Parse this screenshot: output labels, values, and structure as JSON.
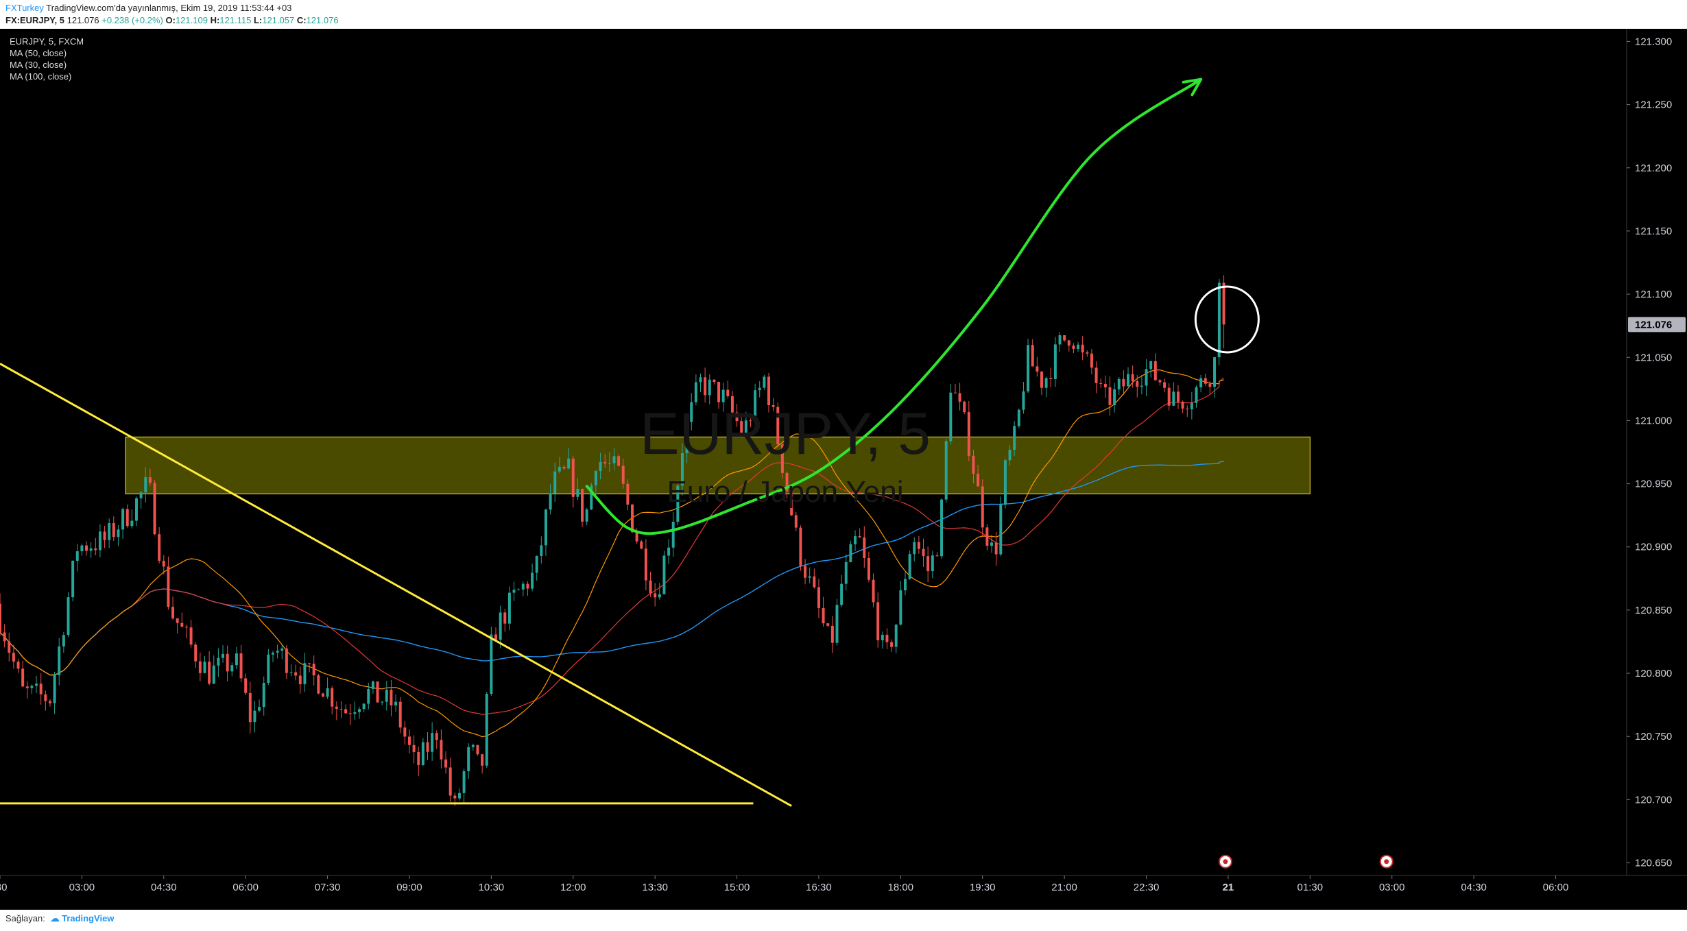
{
  "header": {
    "publisher": "FXTurkey",
    "published_text": "TradingView.com'da yayınlanmış, Ekim 19, 2019 11:53:44 +03",
    "symbol_line": "FX:EURJPY, 5",
    "last_price": "121.076",
    "change": "+0.238 (+0.2%)",
    "o_label": "O:",
    "o_value": "121.109",
    "h_label": "H:",
    "h_value": "121.115",
    "l_label": "L:",
    "l_value": "121.057",
    "c_label": "C:",
    "c_value": "121.076"
  },
  "legend": {
    "series_title": "EURJPY, 5, FXCM",
    "ma_lines": [
      "MA (50, close)",
      "MA (30, close)",
      "MA (100, close)"
    ]
  },
  "watermark": {
    "symbol": "EURJPY, 5",
    "description": "Euro / Japon Yeni"
  },
  "footer": {
    "label": "Sağlayan:",
    "brand": "TradingView"
  },
  "colors": {
    "background": "#000000",
    "candle_up": "#26a69a",
    "candle_down": "#ef5350",
    "trendlines": "#ffeb3b",
    "zone_fill": "#585800",
    "arrow": "#2ee62e",
    "ma50": "#e53935",
    "ma30": "#ff9800",
    "ma100": "#2196f3",
    "price_label_bg": "#b2b5be"
  },
  "chart_data": {
    "type": "candlestick",
    "ylim": [
      120.64,
      121.31
    ],
    "y_ticks": [
      "121.300",
      "121.250",
      "121.200",
      "121.150",
      "121.100",
      "121.050",
      "121.000",
      "120.950",
      "120.900",
      "120.850",
      "120.800",
      "120.750",
      "120.700",
      "120.650"
    ],
    "x_ticks": [
      {
        "label": ":30",
        "hour": 1.5
      },
      {
        "label": "03:00",
        "hour": 3
      },
      {
        "label": "04:30",
        "hour": 4.5
      },
      {
        "label": "06:00",
        "hour": 6
      },
      {
        "label": "07:30",
        "hour": 7.5
      },
      {
        "label": "09:00",
        "hour": 9
      },
      {
        "label": "10:30",
        "hour": 10.5
      },
      {
        "label": "12:00",
        "hour": 12
      },
      {
        "label": "13:30",
        "hour": 13.5
      },
      {
        "label": "15:00",
        "hour": 15
      },
      {
        "label": "16:30",
        "hour": 16.5
      },
      {
        "label": "18:00",
        "hour": 18
      },
      {
        "label": "19:30",
        "hour": 19.5
      },
      {
        "label": "21:00",
        "hour": 21
      },
      {
        "label": "22:30",
        "hour": 22.5
      },
      {
        "label": "21",
        "hour": 24,
        "bold": true
      },
      {
        "label": "01:30",
        "hour": 25.5
      },
      {
        "label": "03:00",
        "hour": 27
      },
      {
        "label": "04:30",
        "hour": 28.5
      },
      {
        "label": "06:00",
        "hour": 30
      }
    ],
    "xlim_hours": [
      1.5,
      31.3
    ],
    "last_price_label": "121.076",
    "candle_interval_min": 5,
    "price_path": [
      [
        1.5,
        120.855
      ],
      [
        2.0,
        120.785
      ],
      [
        2.5,
        120.78
      ],
      [
        3.0,
        120.9
      ],
      [
        3.5,
        120.905
      ],
      [
        4.0,
        120.93
      ],
      [
        4.3,
        120.95
      ],
      [
        4.7,
        120.85
      ],
      [
        5.1,
        120.82
      ],
      [
        5.4,
        120.8
      ],
      [
        5.9,
        120.81
      ],
      [
        6.2,
        120.76
      ],
      [
        6.6,
        120.82
      ],
      [
        7.1,
        120.8
      ],
      [
        7.4,
        120.795
      ],
      [
        7.9,
        120.77
      ],
      [
        8.3,
        120.785
      ],
      [
        8.8,
        120.775
      ],
      [
        9.2,
        120.725
      ],
      [
        9.6,
        120.755
      ],
      [
        9.9,
        120.69
      ],
      [
        10.2,
        120.74
      ],
      [
        10.4,
        120.72
      ],
      [
        10.6,
        120.83
      ],
      [
        11.0,
        120.86
      ],
      [
        11.4,
        120.88
      ],
      [
        11.7,
        120.95
      ],
      [
        12.0,
        120.96
      ],
      [
        12.3,
        120.92
      ],
      [
        12.5,
        120.97
      ],
      [
        12.9,
        120.96
      ],
      [
        13.3,
        120.9
      ],
      [
        13.6,
        120.86
      ],
      [
        13.9,
        120.92
      ],
      [
        14.1,
        120.985
      ],
      [
        14.4,
        121.03
      ],
      [
        14.8,
        121.02
      ],
      [
        15.2,
        120.99
      ],
      [
        15.6,
        121.035
      ],
      [
        15.9,
        120.97
      ],
      [
        16.2,
        120.9
      ],
      [
        16.5,
        120.86
      ],
      [
        16.8,
        120.82
      ],
      [
        17.0,
        120.87
      ],
      [
        17.3,
        120.91
      ],
      [
        17.6,
        120.85
      ],
      [
        17.8,
        120.81
      ],
      [
        18.0,
        120.84
      ],
      [
        18.3,
        120.91
      ],
      [
        18.6,
        120.88
      ],
      [
        18.8,
        120.91
      ],
      [
        19.0,
        121.03
      ],
      [
        19.3,
        120.99
      ],
      [
        19.6,
        120.92
      ],
      [
        19.8,
        120.89
      ],
      [
        20.0,
        120.96
      ],
      [
        20.2,
        120.99
      ],
      [
        20.4,
        121.05
      ],
      [
        20.7,
        121.03
      ],
      [
        21.0,
        121.06
      ],
      [
        21.2,
        121.07
      ],
      [
        21.4,
        121.05
      ],
      [
        21.6,
        121.04
      ],
      [
        21.8,
        121.015
      ],
      [
        22.0,
        121.02
      ],
      [
        22.3,
        121.035
      ],
      [
        22.6,
        121.04
      ],
      [
        22.9,
        121.03
      ],
      [
        23.1,
        121.015
      ],
      [
        23.4,
        121.02
      ],
      [
        23.6,
        121.03
      ],
      [
        23.8,
        121.04
      ],
      [
        23.95,
        121.07
      ],
      [
        24.0,
        121.076
      ]
    ],
    "highlighted_candle": {
      "open": 121.109,
      "high": 121.115,
      "low": 121.057,
      "close": 121.076,
      "hour": 23.92
    },
    "drawings": {
      "descending_trendline": [
        [
          1.5,
          121.045
        ],
        [
          16.0,
          120.695
        ]
      ],
      "support_line": [
        [
          1.5,
          120.697
        ],
        [
          15.3,
          120.697
        ]
      ],
      "zone": {
        "hour_start": 3.8,
        "hour_end": 25.5,
        "top": 120.987,
        "bottom": 120.942
      },
      "curved_arrow": [
        [
          12.25,
          120.948
        ],
        [
          13.0,
          120.915
        ],
        [
          13.8,
          120.913
        ],
        [
          15.2,
          120.935
        ],
        [
          16.5,
          120.96
        ],
        [
          17.9,
          121.01
        ],
        [
          19.5,
          121.09
        ],
        [
          21.5,
          121.21
        ],
        [
          23.5,
          121.27
        ]
      ],
      "circle_marker": {
        "hour": 23.98,
        "price": 121.08
      },
      "event_icons": [
        {
          "hour": 23.95,
          "price": 120.651
        },
        {
          "hour": 26.9,
          "price": 120.651
        }
      ]
    },
    "grid": false,
    "ma_windows": {
      "ma50": 50,
      "ma30": 30,
      "ma100": 100
    }
  }
}
